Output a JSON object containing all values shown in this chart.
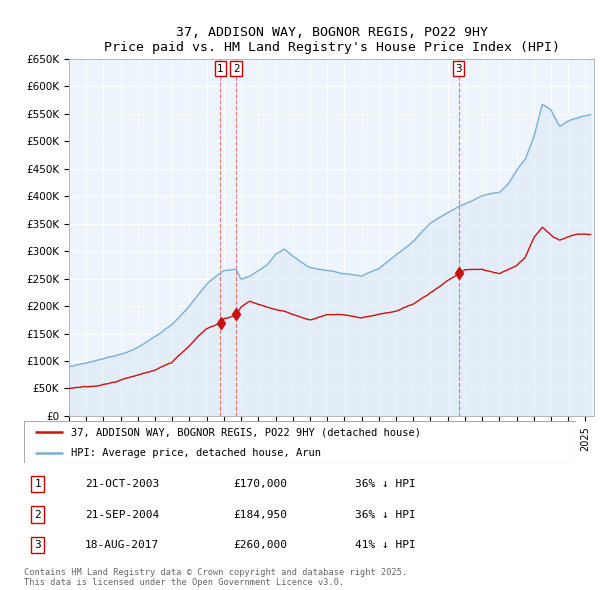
{
  "title": "37, ADDISON WAY, BOGNOR REGIS, PO22 9HY",
  "subtitle": "Price paid vs. HM Land Registry's House Price Index (HPI)",
  "ylabel_ticks": [
    "£0",
    "£50K",
    "£100K",
    "£150K",
    "£200K",
    "£250K",
    "£300K",
    "£350K",
    "£400K",
    "£450K",
    "£500K",
    "£550K",
    "£600K",
    "£650K"
  ],
  "ytick_values": [
    0,
    50000,
    100000,
    150000,
    200000,
    250000,
    300000,
    350000,
    400000,
    450000,
    500000,
    550000,
    600000,
    650000
  ],
  "xlim_start": 1995.0,
  "xlim_end": 2025.5,
  "ylim_min": 0,
  "ylim_max": 650000,
  "hpi_color": "#7ab0d4",
  "hpi_fill_color": "#dce9f5",
  "price_color": "#cc1111",
  "vline_color": "#cc0000",
  "sale_points": [
    {
      "year": 2003.8,
      "price": 170000,
      "label": "1"
    },
    {
      "year": 2004.72,
      "price": 184950,
      "label": "2"
    },
    {
      "year": 2017.63,
      "price": 260000,
      "label": "3"
    }
  ],
  "legend_entries": [
    {
      "label": "37, ADDISON WAY, BOGNOR REGIS, PO22 9HY (detached house)",
      "color": "#cc1111"
    },
    {
      "label": "HPI: Average price, detached house, Arun",
      "color": "#7ab0d4"
    }
  ],
  "table_rows": [
    {
      "num": "1",
      "date": "21-OCT-2003",
      "price": "£170,000",
      "info": "36% ↓ HPI"
    },
    {
      "num": "2",
      "date": "21-SEP-2004",
      "price": "£184,950",
      "info": "36% ↓ HPI"
    },
    {
      "num": "3",
      "date": "18-AUG-2017",
      "price": "£260,000",
      "info": "41% ↓ HPI"
    }
  ],
  "footer": "Contains HM Land Registry data © Crown copyright and database right 2025.\nThis data is licensed under the Open Government Licence v3.0.",
  "background_color": "#ffffff",
  "grid_color": "#cccccc"
}
